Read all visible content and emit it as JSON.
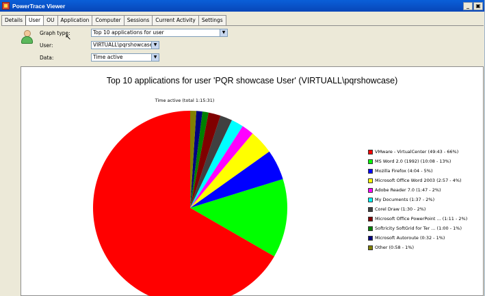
{
  "window": {
    "title": "PowerTrace Viewer",
    "minimize": "_",
    "restore": "▣"
  },
  "tabs": [
    {
      "label": "Details",
      "active": false
    },
    {
      "label": "User",
      "active": true
    },
    {
      "label": "OU",
      "active": false
    },
    {
      "label": "Application",
      "active": false
    },
    {
      "label": "Computer",
      "active": false
    },
    {
      "label": "Sessions",
      "active": false
    },
    {
      "label": "Current Activity",
      "active": false
    },
    {
      "label": "Settings",
      "active": false
    }
  ],
  "form": {
    "graph_type_label": "Graph type:",
    "graph_type_value": "Top 10 applications for user",
    "user_label": "User:",
    "user_value": "VIRTUALL\\pqrshowcase",
    "data_label": "Data:",
    "data_value": "Time active"
  },
  "icons": {
    "user": "user-icon",
    "dropdown": "chevron-down-icon"
  },
  "chart_data": {
    "type": "pie",
    "title": "Top 10 applications for user 'PQR showcase User' (VIRTUALL\\pqrshowcase)",
    "subtitle": "Time active (total 1:15:31)",
    "legend_position": "right",
    "slices": [
      {
        "label": "VMware - VirtualCenter (49:43 - 66%)",
        "value": 66,
        "color": "#ff0000"
      },
      {
        "label": "MS Word 2.0 (1992) (10:08 - 13%)",
        "value": 13,
        "color": "#00ff00"
      },
      {
        "label": "Mozilla Firefox (4:04 - 5%)",
        "value": 5,
        "color": "#0000ff"
      },
      {
        "label": "Microsoft Office Word 2003 (2:57 - 4%)",
        "value": 4,
        "color": "#ffff00"
      },
      {
        "label": "Adobe Reader 7.0 (1:47 - 2%)",
        "value": 2,
        "color": "#ff00ff"
      },
      {
        "label": "My Documents (1:37 - 2%)",
        "value": 2,
        "color": "#00ffff"
      },
      {
        "label": "Corel Draw (1:30 - 2%)",
        "value": 2,
        "color": "#404040"
      },
      {
        "label": "Microsoft Office PowerPoint ... (1:11 - 2%)",
        "value": 2,
        "color": "#800000"
      },
      {
        "label": "Softricity SoftGrid for Ter ... (1:00 - 1%)",
        "value": 1,
        "color": "#008000"
      },
      {
        "label": "Microsoft Autoroute (0:32 - 1%)",
        "value": 1,
        "color": "#000080"
      },
      {
        "label": "Other (0:58 - 1%)",
        "value": 1,
        "color": "#808000"
      }
    ]
  }
}
